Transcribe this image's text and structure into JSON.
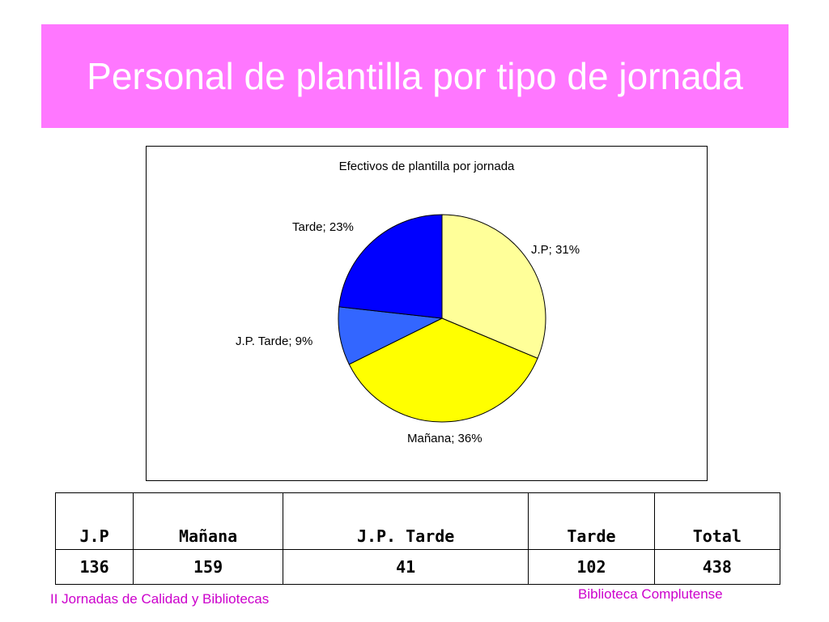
{
  "slide": {
    "title": "Personal de plantilla por tipo de jornada",
    "footer_left": "II Jornadas de Calidad y Bibliotecas",
    "footer_right": "Biblioteca Complutense"
  },
  "chart_data": {
    "type": "pie",
    "title": "Efectivos de plantilla por jornada",
    "slices": [
      {
        "label": "J.P; 31%",
        "name": "J.P",
        "value": 31,
        "color": "#ffff99"
      },
      {
        "label": "Mañana; 36%",
        "name": "Mañana",
        "value": 36,
        "color": "#ffff00"
      },
      {
        "label": "J.P. Tarde; 9%",
        "name": "J.P. Tarde",
        "value": 9,
        "color": "#3366ff"
      },
      {
        "label": "Tarde; 23%",
        "name": "Tarde",
        "value": 23,
        "color": "#0000ff"
      }
    ]
  },
  "table": {
    "headers": [
      "J.P",
      "Mañana",
      "J.P. Tarde",
      "Tarde",
      "Total"
    ],
    "values": [
      "136",
      "159",
      "41",
      "102",
      "438"
    ]
  },
  "colors": {
    "title_bar": "#ff77ff",
    "footer_text": "#cc00cc"
  }
}
